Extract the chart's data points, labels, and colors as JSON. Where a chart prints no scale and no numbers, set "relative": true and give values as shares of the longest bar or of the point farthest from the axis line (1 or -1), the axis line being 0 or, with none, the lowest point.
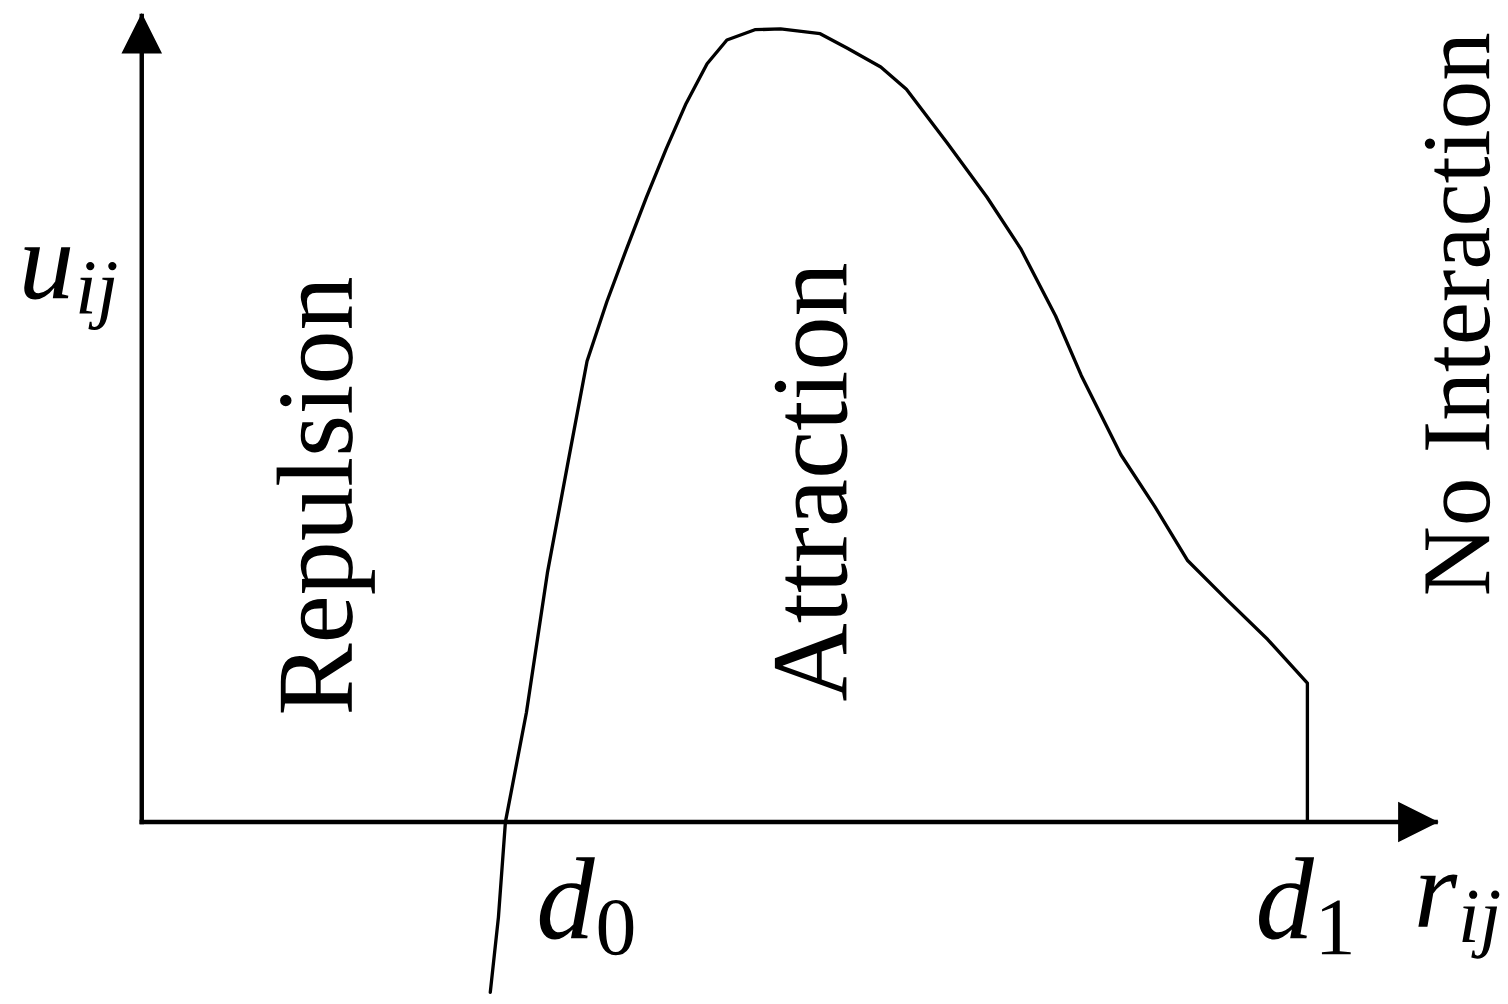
{
  "chart_data": {
    "type": "line",
    "relative": true,
    "xlabel": "r$_{ij}$",
    "ylabel": "u$_{ij}$",
    "x": [
      0.299,
      0.306,
      0.312,
      0.33,
      0.348,
      0.365,
      0.382,
      0.399,
      0.416,
      0.433,
      0.45,
      0.467,
      0.485,
      0.502,
      0.526,
      0.548,
      0.582,
      0.605,
      0.634,
      0.656,
      0.691,
      0.725,
      0.754,
      0.784,
      0.806,
      0.84,
      0.869,
      0.897,
      0.931,
      0.966,
      1.0,
      1.0
    ],
    "series": [
      {
        "color": "#000000",
        "values": [
          -0.215,
          -0.12,
          0,
          0.138,
          0.314,
          0.448,
          0.581,
          0.656,
          0.723,
          0.788,
          0.849,
          0.906,
          0.956,
          0.986,
          0.999,
          1.0,
          0.994,
          0.976,
          0.952,
          0.924,
          0.856,
          0.788,
          0.723,
          0.638,
          0.563,
          0.463,
          0.398,
          0.33,
          0.28,
          0.23,
          0.175,
          0
        ]
      }
    ],
    "xlim": [
      0,
      1.11
    ],
    "xticks": [
      {
        "value": 0.383,
        "label": "d$_{0}$"
      },
      {
        "value": 1,
        "label": "d$_{1}$"
      }
    ],
    "annotations": [
      "Repulsion",
      "Attraction",
      "No Interaction"
    ]
  }
}
